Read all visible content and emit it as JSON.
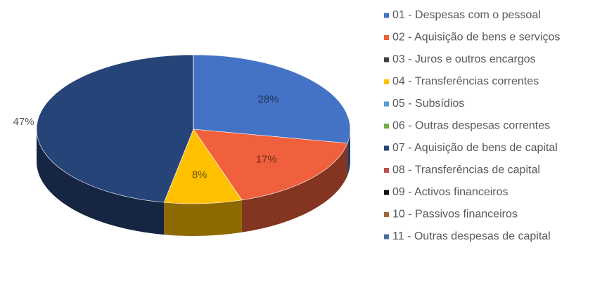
{
  "chart_data": {
    "type": "pie",
    "categories": [
      "01 - Despesas com o pessoal",
      "02 - Aquisição de bens e serviços",
      "03 - Juros e outros encargos",
      "04 - Transferências correntes",
      "05 - Subsídios",
      "06 - Outras despesas correntes",
      "07 - Aquisição de bens de capital",
      "08 - Transferências de capital",
      "09 - Activos financeiros",
      "10 - Passivos financeiros",
      "11 - Outras despesas de capital"
    ],
    "values": [
      28,
      17,
      0,
      8,
      0,
      0,
      47,
      0,
      0,
      0,
      0
    ],
    "value_labels": [
      "28%",
      "17%",
      null,
      "8%",
      null,
      null,
      "47%",
      null,
      null,
      null,
      null
    ],
    "colors": [
      "#4472c4",
      "#f0603c",
      "#404040",
      "#ffc000",
      "#5b9bd5",
      "#70ad47",
      "#264478",
      "#c0504d",
      "#111111",
      "#9e6a3a",
      "#4f6aa0"
    ],
    "legend": "right",
    "style": "3d"
  }
}
